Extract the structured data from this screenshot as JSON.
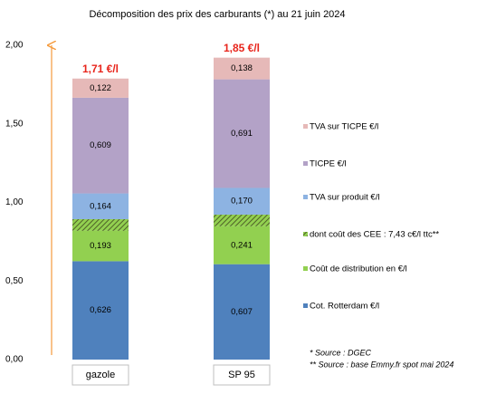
{
  "chart_data": {
    "type": "stacked_bar",
    "title": "Décomposition des prix des carburants (*) au 21 juin 2024",
    "categories": [
      "gazole",
      "SP 95"
    ],
    "series": [
      {
        "name": "Cot. Rotterdam €/l",
        "color": "#4f81bd",
        "values": [
          0.626,
          0.607
        ],
        "value_labels": [
          "0,626",
          "0,607"
        ]
      },
      {
        "name": "Coût de distribution en €/l",
        "color": "#92d050",
        "values": [
          0.193,
          0.241
        ],
        "value_labels": [
          "0,193",
          "0,241"
        ]
      },
      {
        "name": "dont coût des CEE : 7,43 c€/l ttc**",
        "color": "#4f6228",
        "hatched": true,
        "values": [
          0.0743,
          0.0743
        ]
      },
      {
        "name": "TVA sur produit €/l",
        "color": "#8db3e2",
        "values": [
          0.164,
          0.17
        ],
        "value_labels": [
          "0,164",
          "0,170"
        ]
      },
      {
        "name": "TICPE €/l",
        "color": "#b3a2c7",
        "values": [
          0.609,
          0.691
        ],
        "value_labels": [
          "0,609",
          "0,691"
        ]
      },
      {
        "name": "TVA sur TICPE €/l",
        "color": "#e6b9b8",
        "values": [
          0.122,
          0.138
        ],
        "value_labels": [
          "0,122",
          "0,138"
        ]
      }
    ],
    "totals": {
      "values": [
        1.71,
        1.85
      ],
      "value_labels": [
        "1,71 €/l",
        "1,85 €/l"
      ],
      "color": "#e8251c"
    },
    "ylim": [
      0,
      2
    ],
    "yticks": [
      {
        "value": 0,
        "label": "0,00"
      },
      {
        "value": 0.5,
        "label": "0,50"
      },
      {
        "value": 1,
        "label": "1,00"
      },
      {
        "value": 1.5,
        "label": "1,50"
      },
      {
        "value": 2,
        "label": "2,00"
      }
    ],
    "footnotes": [
      "* Source : DGEC",
      "** Source : base Emmy.fr spot mai 2024"
    ]
  }
}
